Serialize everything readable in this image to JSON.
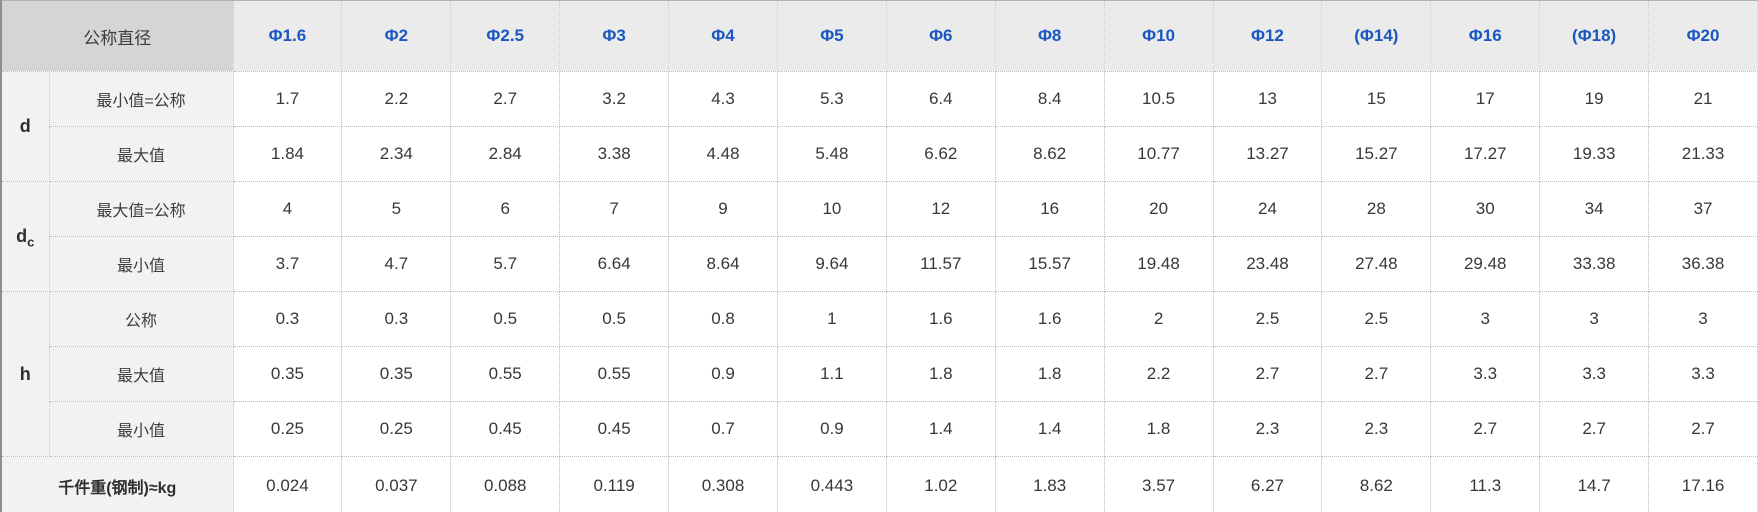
{
  "table": {
    "corner_label": "公称直径",
    "columns": [
      "Φ1.6",
      "Φ2",
      "Φ2.5",
      "Φ3",
      "Φ4",
      "Φ5",
      "Φ6",
      "Φ8",
      "Φ10",
      "Φ12",
      "(Φ14)",
      "Φ16",
      "(Φ18)",
      "Φ20"
    ],
    "groups": [
      {
        "key": "d",
        "label": "d",
        "sub": "",
        "rows": [
          {
            "label": "最小值=公称",
            "values": [
              "1.7",
              "2.2",
              "2.7",
              "3.2",
              "4.3",
              "5.3",
              "6.4",
              "8.4",
              "10.5",
              "13",
              "15",
              "17",
              "19",
              "21"
            ]
          },
          {
            "label": "最大值",
            "values": [
              "1.84",
              "2.34",
              "2.84",
              "3.38",
              "4.48",
              "5.48",
              "6.62",
              "8.62",
              "10.77",
              "13.27",
              "15.27",
              "17.27",
              "19.33",
              "21.33"
            ]
          }
        ]
      },
      {
        "key": "dc",
        "label": "d",
        "sub": "c",
        "rows": [
          {
            "label": "最大值=公称",
            "values": [
              "4",
              "5",
              "6",
              "7",
              "9",
              "10",
              "12",
              "16",
              "20",
              "24",
              "28",
              "30",
              "34",
              "37"
            ]
          },
          {
            "label": "最小值",
            "values": [
              "3.7",
              "4.7",
              "5.7",
              "6.64",
              "8.64",
              "9.64",
              "11.57",
              "15.57",
              "19.48",
              "23.48",
              "27.48",
              "29.48",
              "33.38",
              "36.38"
            ]
          }
        ]
      },
      {
        "key": "h",
        "label": "h",
        "sub": "",
        "rows": [
          {
            "label": "公称",
            "values": [
              "0.3",
              "0.3",
              "0.5",
              "0.5",
              "0.8",
              "1",
              "1.6",
              "1.6",
              "2",
              "2.5",
              "2.5",
              "3",
              "3",
              "3"
            ]
          },
          {
            "label": "最大值",
            "values": [
              "0.35",
              "0.35",
              "0.55",
              "0.55",
              "0.9",
              "1.1",
              "1.8",
              "1.8",
              "2.2",
              "2.7",
              "2.7",
              "3.3",
              "3.3",
              "3.3"
            ]
          },
          {
            "label": "最小值",
            "values": [
              "0.25",
              "0.25",
              "0.45",
              "0.45",
              "0.7",
              "0.9",
              "1.4",
              "1.4",
              "1.8",
              "2.3",
              "2.3",
              "2.7",
              "2.7",
              "2.7"
            ]
          }
        ]
      }
    ],
    "footer": {
      "label": "千件重(钢制)≈kg",
      "values": [
        "0.024",
        "0.037",
        "0.088",
        "0.119",
        "0.308",
        "0.443",
        "1.02",
        "1.83",
        "3.57",
        "6.27",
        "8.62",
        "11.3",
        "14.7",
        "17.16"
      ]
    }
  },
  "colors": {
    "header_corner_bg": "#d5d5d5",
    "header_bg": "#ebebeb",
    "label_bg": "#f2f2f2",
    "header_text_blue": "#1a57c0",
    "body_text": "#383838"
  }
}
